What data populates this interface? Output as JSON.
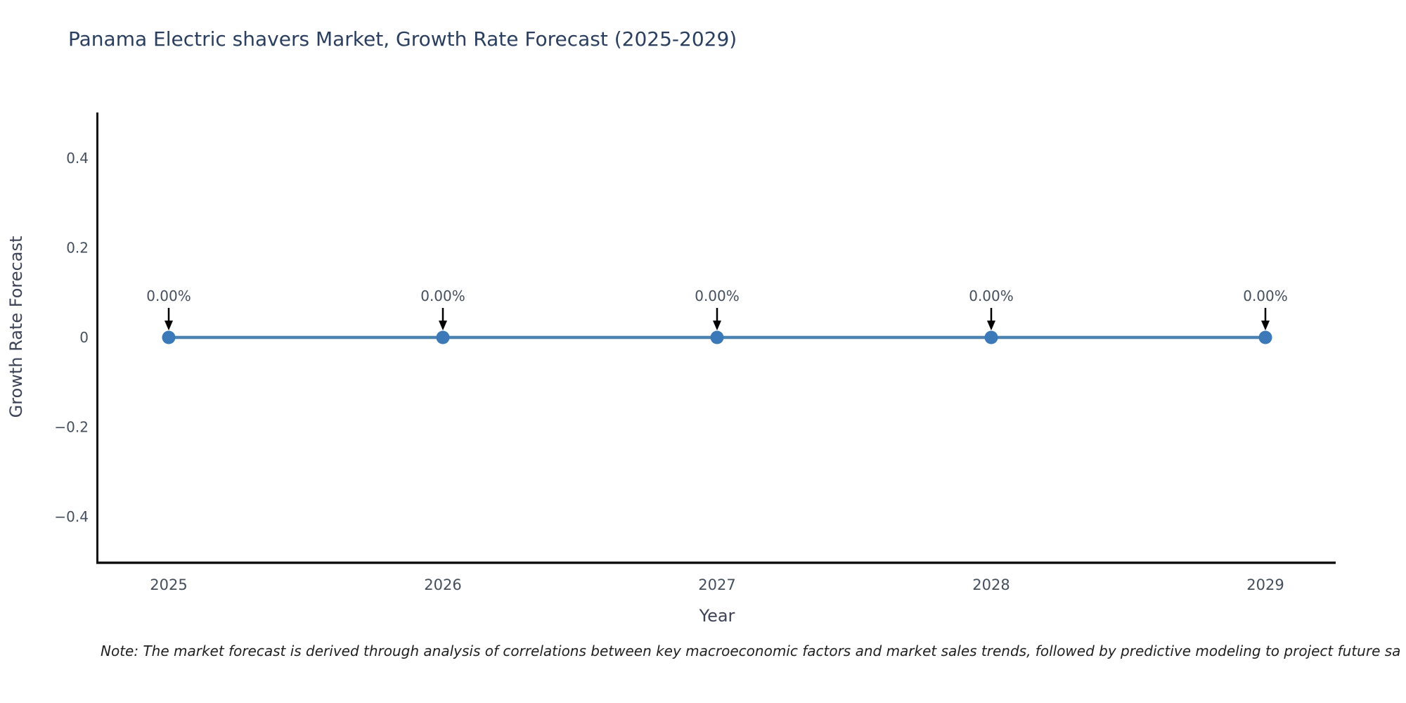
{
  "title": "Panama Electric shavers Market, Growth Rate Forecast (2025-2029)",
  "note": "Note: The market forecast is derived through analysis of correlations between key macroeconomic factors and market sales trends, followed by predictive modeling to project future sa",
  "chart_data": {
    "type": "line",
    "title": "Panama Electric shavers Market, Growth Rate Forecast (2025-2029)",
    "xlabel": "Year",
    "ylabel": "Growth Rate Forecast",
    "categories": [
      "2025",
      "2026",
      "2027",
      "2028",
      "2029"
    ],
    "series": [
      {
        "name": "Growth Rate Forecast",
        "values": [
          0,
          0,
          0,
          0,
          0
        ],
        "point_labels": [
          "0.00%",
          "0.00%",
          "0.00%",
          "0.00%",
          "0.00%"
        ]
      }
    ],
    "y_ticks": [
      {
        "value": 0.4,
        "label": "0.4"
      },
      {
        "value": 0.2,
        "label": "0.2"
      },
      {
        "value": 0,
        "label": "0"
      },
      {
        "value": -0.2,
        "label": "−0.2"
      },
      {
        "value": -0.4,
        "label": "−0.4"
      }
    ],
    "ylim": [
      -0.5,
      0.5
    ],
    "grid": false,
    "legend": false,
    "annotations_style": "value label with down arrow onto each point",
    "colors": {
      "line": "#4d83b2",
      "marker": "#3b79b8",
      "arrow": "#000000",
      "axis": "#111111",
      "tick_label": "#444f5e",
      "axis_title": "#3d4356",
      "title": "#2a3f5f",
      "note": "#1f1f1f"
    }
  }
}
